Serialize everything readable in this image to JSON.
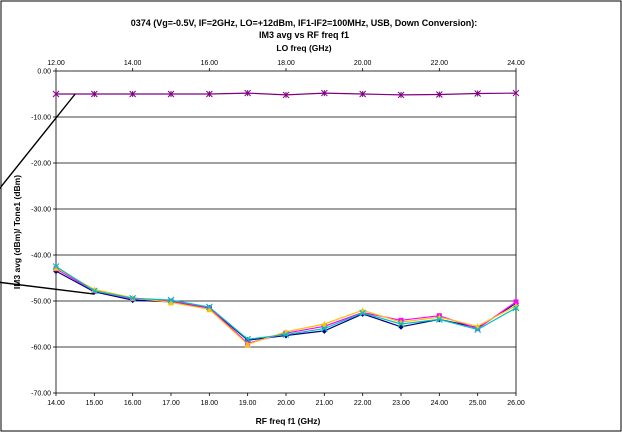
{
  "chart_data": {
    "type": "line",
    "title_lines": [
      "0374 (Vg=-0.5V, IF=2GHz, LO=+12dBm, IF1-IF2=100MHz, USB, Down Conversion):",
      "IM3 avg vs RF freq f1"
    ],
    "top_axis_label": "LO freq (GHz)",
    "xlabel": "RF freq f1 (GHz)",
    "ylabel": "IM3 avg (dBm)/ Tone1 (dBm)",
    "xlim": [
      14,
      26
    ],
    "ylim": [
      -70,
      0
    ],
    "top_xlim": [
      12,
      24
    ],
    "x_ticks": [
      "14.00",
      "15.00",
      "16.00",
      "17.00",
      "18.00",
      "19.00",
      "20.00",
      "21.00",
      "22.00",
      "23.00",
      "24.00",
      "25.00",
      "26.00"
    ],
    "top_x_ticks": [
      "12.00",
      "14.00",
      "16.00",
      "18.00",
      "20.00",
      "22.00",
      "24.00"
    ],
    "y_ticks": [
      "0.00",
      "-10.00",
      "-20.00",
      "-30.00",
      "-40.00",
      "-50.00",
      "-60.00",
      "-70.00"
    ],
    "grid": "horizontal",
    "x": [
      14,
      15,
      16,
      17,
      18,
      19,
      20,
      21,
      22,
      23,
      24,
      25,
      26
    ],
    "series": [
      {
        "color": "#800080",
        "marker": "asterisk",
        "values": [
          -5.0,
          -5.0,
          -5.0,
          -5.0,
          -5.0,
          -4.8,
          -5.2,
          -4.8,
          -5.0,
          -5.2,
          -5.1,
          -4.9,
          -4.8
        ]
      },
      {
        "color": "#000080",
        "marker": "diamond",
        "values": [
          -43.5,
          -48.0,
          -49.8,
          -50.2,
          -51.5,
          -58.5,
          -57.5,
          -56.5,
          -52.8,
          -55.6,
          -54.0,
          -55.8,
          -50.5
        ]
      },
      {
        "color": "#ff00ff",
        "marker": "square",
        "values": [
          -43.0,
          -47.8,
          -49.5,
          -50.0,
          -51.5,
          -59.2,
          -57.0,
          -55.5,
          -52.5,
          -54.2,
          -53.2,
          -56.0,
          -50.2
        ]
      },
      {
        "color": "#ffc000",
        "marker": "triangle",
        "values": [
          -42.8,
          -47.5,
          -49.3,
          -50.3,
          -51.8,
          -59.4,
          -56.7,
          -55.0,
          -52.0,
          -54.6,
          -53.5,
          -55.5,
          -51.0
        ]
      },
      {
        "color": "#00c0c0",
        "marker": "x",
        "values": [
          -42.5,
          -47.8,
          -49.4,
          -49.8,
          -51.3,
          -58.3,
          -57.3,
          -56.0,
          -52.6,
          -55.0,
          -54.0,
          -56.2,
          -51.5
        ]
      }
    ],
    "annotations": [
      {
        "type": "arrow",
        "from": {
          "x": 14.5,
          "y": -5.0
        },
        "to": {
          "x": 12.1,
          "y": -30.0
        }
      },
      {
        "type": "arrow",
        "from": {
          "x": 15.0,
          "y": -48.5
        },
        "to": {
          "x": 12.1,
          "y": -45.5
        }
      }
    ]
  }
}
